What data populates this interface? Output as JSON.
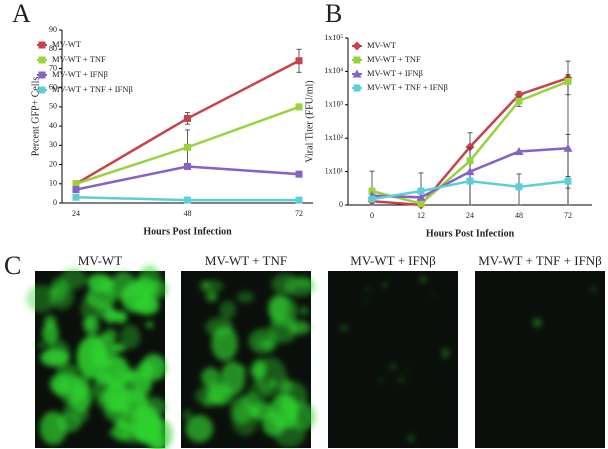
{
  "chart_data": [
    {
      "type": "line",
      "panel": "A",
      "y_label": "Percent GFP+ Cells",
      "x_label": "Hours Post Infection",
      "categories": [
        "24",
        "48",
        "72"
      ],
      "ylim": [
        0,
        90
      ],
      "yticks": [
        0,
        10,
        20,
        30,
        40,
        50,
        60,
        70,
        80,
        90
      ],
      "legend": "upper left",
      "series": [
        {
          "name": "MV-WT",
          "color": "#c9414d",
          "marker": "square",
          "values": [
            10,
            44,
            74
          ],
          "errors": [
            null,
            3,
            6
          ]
        },
        {
          "name": "MV-WT + TNF",
          "color": "#98d33c",
          "marker": "square",
          "values": [
            10,
            29,
            50
          ],
          "errors": [
            null,
            9,
            null
          ]
        },
        {
          "name": "MV-WT + IFNβ",
          "color": "#8561c8",
          "marker": "square",
          "values": [
            7,
            19,
            15
          ],
          "errors": [
            null,
            null,
            null
          ]
        },
        {
          "name": "MV-WT + TNF + IFNβ",
          "color": "#5ccfd6",
          "marker": "square",
          "values": [
            3,
            1.5,
            1.5
          ],
          "errors": [
            null,
            null,
            null
          ]
        }
      ]
    },
    {
      "type": "line",
      "panel": "B",
      "y_label": "Viral Titer (FFU/ml)",
      "x_label": "Hours Post Infection",
      "categories": [
        "0",
        "12",
        "24",
        "48",
        "72"
      ],
      "ylim": [
        1,
        100000
      ],
      "log_scale": true,
      "yticks": [
        {
          "value": 1,
          "label": "0"
        },
        {
          "value": 10,
          "label": "1x10¹"
        },
        {
          "value": 100,
          "label": "1x10²"
        },
        {
          "value": 1000,
          "label": "1x10³"
        },
        {
          "value": 10000,
          "label": "1x10⁴"
        },
        {
          "value": 100000,
          "label": "1x10⁵"
        }
      ],
      "legend": "upper left",
      "series": [
        {
          "name": "MV-WT",
          "color": "#c9414d",
          "marker": "diamond",
          "values": [
            1.3,
            1,
            55,
            2000,
            6300
          ],
          "errors": [
            9,
            null,
            90,
            500,
            14000
          ]
        },
        {
          "name": "MV-WT + TNF",
          "color": "#98d33c",
          "marker": "square",
          "values": [
            2.6,
            1.1,
            21,
            1300,
            5000
          ],
          "errors": [
            null,
            8,
            30,
            400,
            3000
          ]
        },
        {
          "name": "MV-WT + IFNβ",
          "color": "#8561c8",
          "marker": "triangle",
          "values": [
            1.9,
            1.7,
            10,
            40,
            50
          ],
          "errors": [
            null,
            null,
            null,
            null,
            80
          ]
        },
        {
          "name": "MV-WT + TNF + IFNβ",
          "color": "#5ccfd6",
          "marker": "square",
          "values": [
            1.5,
            2.6,
            5.2,
            3.5,
            5.2
          ],
          "errors": [
            null,
            null,
            null,
            5,
            2
          ]
        }
      ]
    }
  ],
  "panel_c": {
    "label": "C",
    "images": [
      "MV-WT",
      "MV-WT + TNF",
      "MV-WT + IFNβ",
      "MV-WT + TNF + IFNβ"
    ]
  }
}
